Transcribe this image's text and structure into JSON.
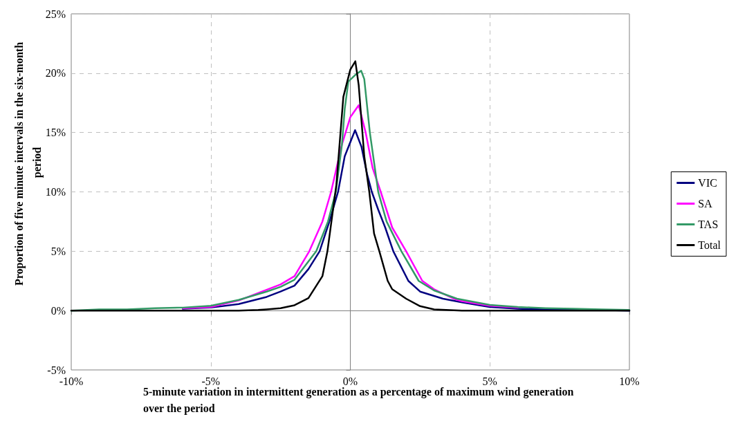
{
  "chart_data": {
    "type": "line",
    "xlabel": "5-minute variation in intermittent generation as a percentage of maximum wind generation over the period",
    "ylabel": "Proportion of five minute intervals in the six-month period",
    "xlim": [
      -10,
      10
    ],
    "xticks": [
      {
        "value": -10,
        "label": "-10%"
      },
      {
        "value": -5,
        "label": "-5%"
      },
      {
        "value": 0,
        "label": "0%"
      },
      {
        "value": 5,
        "label": "5%"
      },
      {
        "value": 10,
        "label": "10%"
      }
    ],
    "ylim": [
      -5,
      25
    ],
    "yticks": [
      {
        "value": -5,
        "label": "-5%"
      },
      {
        "value": 0,
        "label": "0%"
      },
      {
        "value": 5,
        "label": "5%"
      },
      {
        "value": 10,
        "label": "10%"
      },
      {
        "value": 15,
        "label": "15%"
      },
      {
        "value": 20,
        "label": "20%"
      },
      {
        "value": 25,
        "label": "25%"
      }
    ],
    "grid": true,
    "legend": "right",
    "marker": "none",
    "line_style": "solid",
    "series": [
      {
        "name": "VIC",
        "color": "#000080",
        "x": [
          -6,
          -5,
          -4,
          -3,
          -2.5,
          -2,
          -1.5,
          -1.1,
          -0.75,
          -0.44,
          -0.2,
          0.17,
          0.4,
          0.6,
          0.77,
          1,
          1.25,
          1.54,
          2.08,
          2.5,
          3.32,
          4,
          5,
          6,
          7,
          8,
          9,
          10
        ],
        "values": [
          0.15,
          0.25,
          0.55,
          1.15,
          1.6,
          2.1,
          3.5,
          5,
          7.5,
          10,
          13,
          15.2,
          13.8,
          11.5,
          10,
          8.5,
          7,
          5,
          2.5,
          1.6,
          1,
          0.7,
          0.3,
          0.15,
          0.1,
          0.05,
          0.05,
          0
        ]
      },
      {
        "name": "SA",
        "color": "#ff00ff",
        "x": [
          -6,
          -5,
          -4,
          -3,
          -2.5,
          -2,
          -1.47,
          -1,
          -0.69,
          -0.3,
          0,
          0.3,
          0.55,
          0.8,
          1.09,
          1.5,
          2,
          2.58,
          3,
          3.7,
          4,
          5,
          6
        ],
        "values": [
          0.2,
          0.3,
          0.85,
          1.75,
          2.2,
          2.9,
          5,
          7.5,
          10,
          14,
          16.3,
          17.3,
          15,
          12,
          10,
          7,
          5,
          2.5,
          1.8,
          1,
          0.8,
          0.4,
          0.25
        ]
      },
      {
        "name": "TAS",
        "color": "#339966",
        "x": [
          -10,
          -9,
          -8,
          -7,
          -6,
          -5,
          -4,
          -3,
          -2.5,
          -2,
          -1.22,
          -0.8,
          -0.52,
          -0.3,
          -0.2,
          -0.07,
          0.2,
          0.39,
          0.5,
          0.7,
          1,
          1.3,
          1.83,
          2.45,
          3,
          3.82,
          5,
          6,
          7,
          8,
          9,
          10
        ],
        "values": [
          0,
          0.1,
          0.1,
          0.2,
          0.25,
          0.4,
          0.9,
          1.6,
          2,
          2.6,
          5,
          7.5,
          10,
          14,
          17,
          19.3,
          19.9,
          20.2,
          19.5,
          15,
          10,
          7.5,
          5,
          2.5,
          1.7,
          1,
          0.47,
          0.3,
          0.2,
          0.15,
          0.1,
          0.05
        ]
      },
      {
        "name": "Total",
        "color": "#000000",
        "x": [
          -10,
          -5,
          -4,
          -3.3,
          -3,
          -2.5,
          -2,
          -1.5,
          -1,
          -0.82,
          -0.5,
          -0.25,
          0,
          0.18,
          0.3,
          0.5,
          0.68,
          0.85,
          1.04,
          1.34,
          1.5,
          2,
          2.5,
          3,
          4,
          10
        ],
        "values": [
          0,
          0,
          0,
          0.05,
          0.1,
          0.2,
          0.45,
          1.05,
          2.9,
          5,
          10.6,
          18,
          20.3,
          21,
          19,
          13,
          10,
          6.5,
          5,
          2.5,
          1.8,
          1,
          0.37,
          0.1,
          0,
          0
        ]
      }
    ]
  }
}
